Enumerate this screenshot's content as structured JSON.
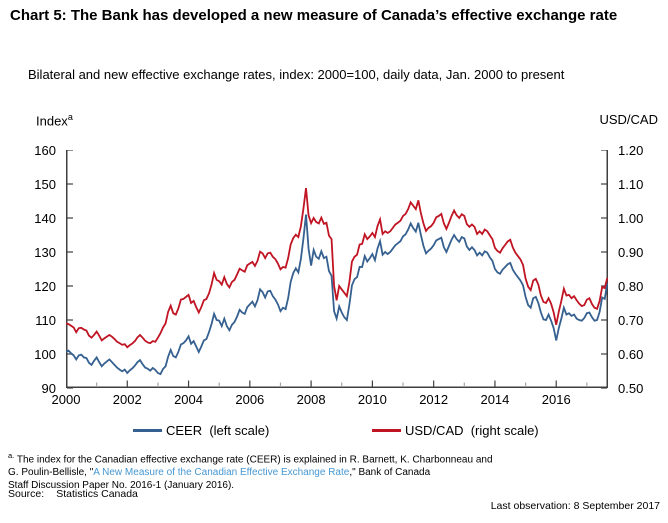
{
  "title": "Chart 5: The Bank has developed a new measure of Canada’s effective exchange rate",
  "subtitle": "Bilateral and new effective exchange rates, index: 2000=100, daily data, Jan. 2000 to present",
  "axes": {
    "left_title": "Index",
    "left_title_superscript": "a",
    "right_title": "USD/CAD"
  },
  "legend": [
    {
      "label": "CEER  (left scale)",
      "color": "#35608F"
    },
    {
      "label": "USD/CAD  (right scale)",
      "color": "#C01423"
    }
  ],
  "footnote": {
    "marker": "a.",
    "line1": " The index for the Canadian effective exchange rate (CEER) is explained in R. Barnett, K. Charbonneau and",
    "line2_before": "G. Poulin-Bellisle, \"",
    "link_text": "A New Measure of the Canadian Effective Exchange Rate",
    "line2_after": ",\" Bank of Canada",
    "line3": "Staff Discussion Paper No. 2016-1 (January 2016)."
  },
  "source_label": "Source:",
  "source_value": "Statistics Canada",
  "last_observation": "Last observation: 8 September 2017",
  "chart_data": {
    "type": "line",
    "title": "Chart 5: The Bank has developed a new measure of Canada’s effective exchange rate",
    "x_range": [
      2000,
      2017.69
    ],
    "x_ticks_major": [
      2000,
      2002,
      2004,
      2006,
      2008,
      2010,
      2012,
      2014,
      2016
    ],
    "x_ticks_minor": [
      2001,
      2003,
      2005,
      2007,
      2009,
      2011,
      2013,
      2015,
      2017
    ],
    "left_ylim": [
      90,
      160
    ],
    "left_yticks": [
      160,
      150,
      140,
      130,
      120,
      110,
      100,
      90
    ],
    "right_ylim": [
      0.5,
      1.2
    ],
    "right_ytick_labels": [
      "1.20",
      "1.10",
      "1.00",
      "0.90",
      "0.80",
      "0.70",
      "0.60",
      "0.50"
    ],
    "grid": false,
    "legend_position": "bottom",
    "series_x_start": 2000.0,
    "series_x_step": 0.0833333,
    "series": [
      {
        "name": "CEER",
        "axis": "left",
        "color": "#35608F",
        "values": [
          100.6,
          101.0,
          100.2,
          99.6,
          98.4,
          99.6,
          99.8,
          99.0,
          98.8,
          97.4,
          96.8,
          98.0,
          99.0,
          97.6,
          96.4,
          97.2,
          97.8,
          98.4,
          97.6,
          96.8,
          96.0,
          95.4,
          94.9,
          95.4,
          94.4,
          95.2,
          95.8,
          96.6,
          97.6,
          98.2,
          97.0,
          96.0,
          95.7,
          95.1,
          95.9,
          95.3,
          94.4,
          94.1,
          95.6,
          96.4,
          99.2,
          101.2,
          99.4,
          99.0,
          100.6,
          102.8,
          103.2,
          104.0,
          105.2,
          103.0,
          103.8,
          102.2,
          100.6,
          102.2,
          104.0,
          104.4,
          106.4,
          108.8,
          111.8,
          110.0,
          109.8,
          108.2,
          110.4,
          108.2,
          107.0,
          108.6,
          109.4,
          111.0,
          113.0,
          112.2,
          111.8,
          113.8,
          114.6,
          115.4,
          114.0,
          115.8,
          119.0,
          118.2,
          116.6,
          118.4,
          118.6,
          117.0,
          116.0,
          114.6,
          112.6,
          113.6,
          113.2,
          116.4,
          121.2,
          123.8,
          125.2,
          124.0,
          128.0,
          134.0,
          141.0,
          131.0,
          126.0,
          130.6,
          128.6,
          128.0,
          130.2,
          128.2,
          128.6,
          124.4,
          123.0,
          112.6,
          110.4,
          114.0,
          112.2,
          110.8,
          110.0,
          114.6,
          120.2,
          122.0,
          122.6,
          125.6,
          125.6,
          128.8,
          127.2,
          128.2,
          129.4,
          127.6,
          131.0,
          133.2,
          129.2,
          130.0,
          129.4,
          130.0,
          131.0,
          132.0,
          132.6,
          133.2,
          134.6,
          135.2,
          136.6,
          138.4,
          137.0,
          136.0,
          138.6,
          135.0,
          131.8,
          129.6,
          130.4,
          131.0,
          132.0,
          133.4,
          133.8,
          134.2,
          131.4,
          130.0,
          131.8,
          133.6,
          135.0,
          133.8,
          133.0,
          134.4,
          134.0,
          131.6,
          130.6,
          131.4,
          130.6,
          129.0,
          129.8,
          129.0,
          130.2,
          129.8,
          128.4,
          127.4,
          125.0,
          124.0,
          123.6,
          124.8,
          125.6,
          126.4,
          126.8,
          124.8,
          123.6,
          122.6,
          121.6,
          120.2,
          116.8,
          114.4,
          113.6,
          116.4,
          116.8,
          115.0,
          112.2,
          110.2,
          110.0,
          111.6,
          109.8,
          107.6,
          104.0,
          107.6,
          110.4,
          113.6,
          111.6,
          112.0,
          111.2,
          111.6,
          110.4,
          110.0,
          109.8,
          110.6,
          112.0,
          112.2,
          110.8,
          109.8,
          110.0,
          112.4,
          116.6,
          116.2,
          120.8
        ]
      },
      {
        "name": "USD/CAD",
        "axis": "right",
        "color": "#C01423",
        "values": [
          0.69,
          0.688,
          0.683,
          0.678,
          0.664,
          0.676,
          0.677,
          0.672,
          0.669,
          0.654,
          0.648,
          0.656,
          0.666,
          0.654,
          0.64,
          0.646,
          0.651,
          0.656,
          0.651,
          0.644,
          0.636,
          0.632,
          0.627,
          0.629,
          0.62,
          0.626,
          0.631,
          0.638,
          0.649,
          0.656,
          0.648,
          0.639,
          0.634,
          0.632,
          0.638,
          0.636,
          0.648,
          0.661,
          0.678,
          0.69,
          0.724,
          0.742,
          0.72,
          0.716,
          0.734,
          0.76,
          0.762,
          0.768,
          0.774,
          0.75,
          0.756,
          0.738,
          0.722,
          0.738,
          0.758,
          0.762,
          0.778,
          0.804,
          0.838,
          0.818,
          0.814,
          0.804,
          0.826,
          0.806,
          0.796,
          0.812,
          0.818,
          0.834,
          0.851,
          0.846,
          0.842,
          0.861,
          0.866,
          0.871,
          0.859,
          0.874,
          0.901,
          0.896,
          0.882,
          0.896,
          0.898,
          0.886,
          0.879,
          0.866,
          0.849,
          0.856,
          0.854,
          0.882,
          0.922,
          0.941,
          0.951,
          0.944,
          0.976,
          1.028,
          1.088,
          1.008,
          0.985,
          1.0,
          0.988,
          0.984,
          1.001,
          0.983,
          0.986,
          0.948,
          0.938,
          0.8,
          0.758,
          0.8,
          0.79,
          0.78,
          0.77,
          0.812,
          0.872,
          0.886,
          0.892,
          0.922,
          0.924,
          0.952,
          0.938,
          0.946,
          0.956,
          0.944,
          0.976,
          0.996,
          0.953,
          0.961,
          0.956,
          0.961,
          0.971,
          0.981,
          0.986,
          0.992,
          1.006,
          1.012,
          1.026,
          1.046,
          1.036,
          1.026,
          1.052,
          1.014,
          0.984,
          0.962,
          0.971,
          0.976,
          0.986,
          1.002,
          1.006,
          1.012,
          0.984,
          0.968,
          0.986,
          1.006,
          1.022,
          1.008,
          1.0,
          1.011,
          1.006,
          0.982,
          0.974,
          0.981,
          0.974,
          0.953,
          0.961,
          0.953,
          0.966,
          0.961,
          0.949,
          0.938,
          0.912,
          0.903,
          0.898,
          0.911,
          0.921,
          0.931,
          0.936,
          0.913,
          0.898,
          0.888,
          0.878,
          0.862,
          0.822,
          0.798,
          0.788,
          0.816,
          0.821,
          0.804,
          0.772,
          0.753,
          0.75,
          0.764,
          0.748,
          0.722,
          0.686,
          0.724,
          0.756,
          0.792,
          0.772,
          0.774,
          0.764,
          0.77,
          0.758,
          0.748,
          0.741,
          0.744,
          0.76,
          0.764,
          0.747,
          0.736,
          0.733,
          0.756,
          0.797,
          0.794,
          0.824
        ]
      }
    ]
  }
}
